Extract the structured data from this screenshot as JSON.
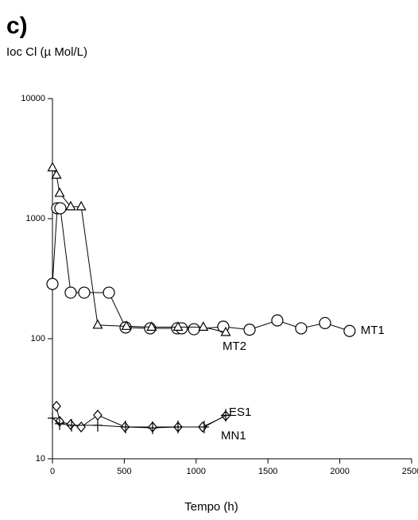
{
  "chart_data": {
    "type": "line",
    "title": "c)",
    "ylabel": "Ioc Cl (µ Mol/L)",
    "xlabel": "Tempo (h)",
    "yscale": "log",
    "xlim": [
      0,
      2500
    ],
    "ylim": [
      10,
      10000
    ],
    "xticks": [
      0,
      500,
      1000,
      1500,
      2000,
      2500
    ],
    "yticks": [
      10,
      100,
      1000,
      10000
    ],
    "series": [
      {
        "name": "MT1",
        "color": "#000000",
        "marker": "circle",
        "x": [
          0,
          33,
          55,
          127,
          221,
          393,
          509,
          680,
          868,
          900,
          985,
          1189,
          1372,
          1565,
          1731,
          1897,
          2068
        ],
        "values": [
          286,
          1220,
          1220,
          242,
          242,
          242,
          124,
          122,
          122,
          122,
          120,
          126,
          119,
          142,
          122,
          135,
          116
        ]
      },
      {
        "name": "MT2",
        "color": "#000000",
        "marker": "triangle",
        "x": [
          0,
          28,
          50,
          127,
          200,
          315,
          515,
          690,
          874,
          1050,
          1206
        ],
        "values": [
          2660,
          2310,
          1630,
          1260,
          1260,
          130,
          127,
          125,
          125,
          125,
          113
        ]
      },
      {
        "name": "ES1",
        "color": "#000000",
        "marker": "diamond",
        "x": [
          28,
          50,
          127,
          200,
          315,
          505,
          697,
          874,
          1045,
          1206
        ],
        "values": [
          27.4,
          20.5,
          19.3,
          18.4,
          23.1,
          18.4,
          18.4,
          18.4,
          18.4,
          22.8
        ]
      },
      {
        "name": "MN1",
        "color": "#000000",
        "marker": "plus",
        "x": [
          0,
          50,
          133,
          315,
          509,
          697,
          874,
          1056,
          1206
        ],
        "values": [
          21.8,
          19.6,
          19,
          19,
          18.4,
          18.1,
          18.4,
          18.4,
          23
        ]
      }
    ]
  }
}
